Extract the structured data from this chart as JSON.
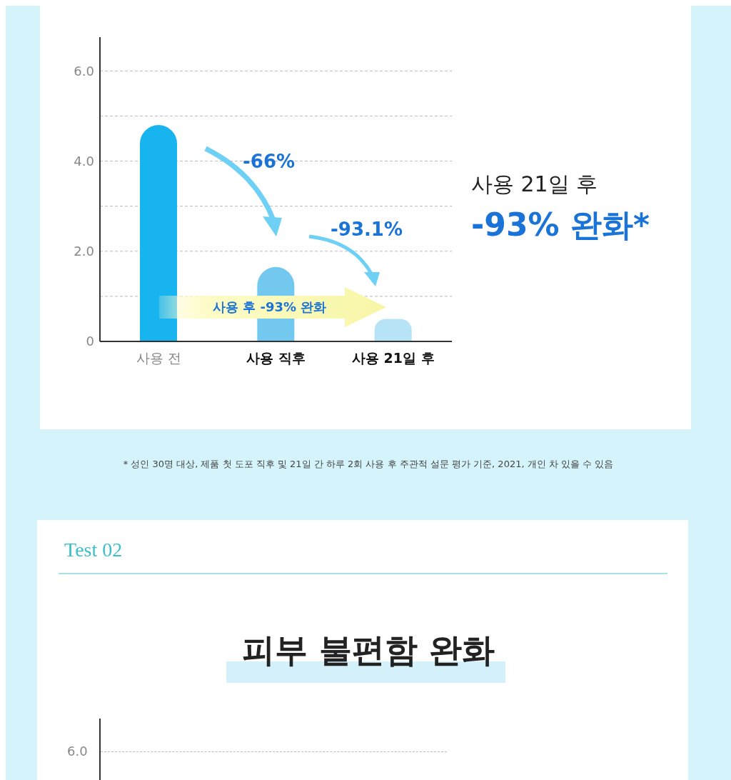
{
  "chart_data": [
    {
      "type": "bar",
      "categories": [
        "사용 전",
        "사용 직후",
        "사용 21일 후"
      ],
      "values": [
        4.8,
        1.65,
        0.5
      ],
      "colors": [
        "#18b4f0",
        "#72c8ee",
        "#b7e3f6"
      ],
      "ylim": [
        0,
        6.75
      ],
      "yticks": [
        0,
        {
          "value": 1,
          "label": null
        },
        {
          "value": 2,
          "label": "2.0"
        },
        {
          "value": 3,
          "label": null
        },
        {
          "value": 4,
          "label": "4.0"
        },
        {
          "value": 5,
          "label": null
        },
        {
          "value": 6,
          "label": "6.0"
        }
      ],
      "grid": "y",
      "annotations": [
        "-66%",
        "-93.1%",
        "사용 후 -93% 완화",
        "사용 21일 후",
        "-93% 완화*",
        "* 성인 30명 대상, 제품 첫 도포 직후 및 21일 간 하루 2회 사용 후 주관적 설문 평가 기준, 2021, 개인 차 있을 수 있음"
      ]
    },
    {
      "type": "other",
      "title": "피부 불편함 완화",
      "annotations": [
        "Test 02",
        "6.0"
      ]
    }
  ]
}
